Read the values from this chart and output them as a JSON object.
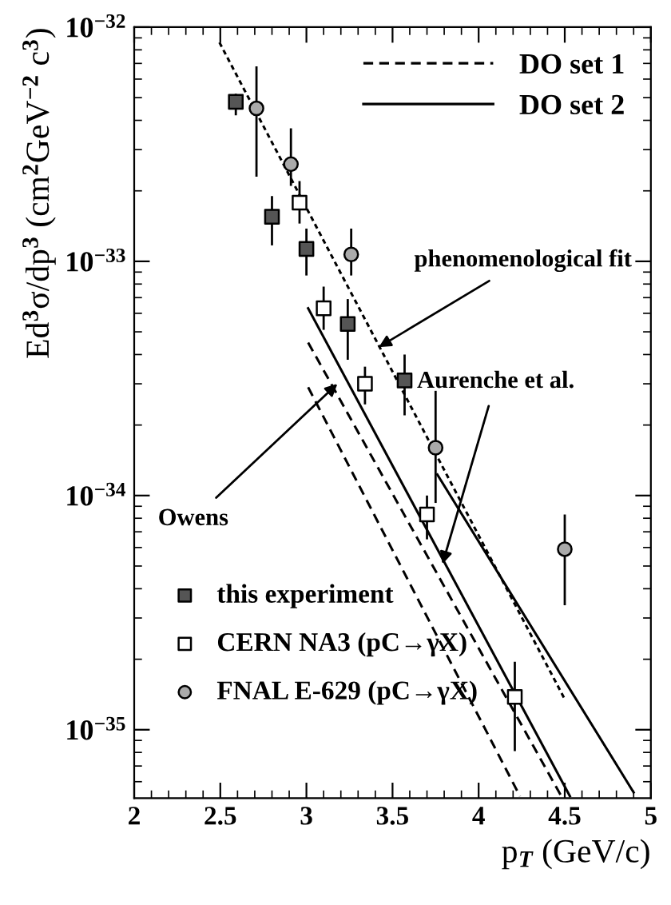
{
  "chart_data": {
    "type": "scatter",
    "xlabel": "p$_{T}$ (GeV/c)",
    "ylabel": "Ed$^{3}$σ/dp$^{3}$ (cm$^{2}$GeV$^{−2}$ c$^{3}$)",
    "xlim": [
      2,
      5
    ],
    "xticks": [
      2,
      2.5,
      3,
      3.5,
      4,
      4.5,
      5
    ],
    "log": "y",
    "ylim": [
      5.1e-36,
      1e-32
    ],
    "yticks": [
      {
        "value": 1e-35,
        "label": "10$^{−35}$"
      },
      {
        "value": 1e-34,
        "label": "10$^{−34}$"
      },
      {
        "value": 1e-33,
        "label": "10$^{−33}$"
      },
      {
        "value": 1e-32,
        "label": "10$^{−32}$"
      }
    ],
    "grid": false,
    "legend": "top right",
    "series": [
      {
        "name": "this experiment",
        "marker": "square",
        "color": "#555555",
        "x": [
          2.59,
          2.8,
          3.0,
          3.24,
          3.57
        ],
        "values": [
          4.8e-33,
          1.55e-33,
          1.13e-33,
          5.4e-34,
          3.1e-34
        ],
        "errors": [
          [
            4.2e-33,
            5.2e-33
          ],
          [
            1.17e-33,
            1.9e-33
          ],
          [
            8.7e-34,
            1.38e-33
          ],
          [
            3.8e-34,
            6.9e-34
          ],
          [
            2.2e-34,
            4e-34
          ]
        ]
      },
      {
        "name": "CERN NA3 (pC→γX)",
        "marker": "square",
        "color": "#ffffff",
        "x": [
          2.96,
          3.1,
          3.34,
          3.7,
          4.21
        ],
        "values": [
          1.78e-33,
          6.3e-34,
          3e-34,
          8.3e-35,
          1.38e-35
        ],
        "errors": [
          [
            1.45e-33,
            2.2e-33
          ],
          [
            5.1e-34,
            7.8e-34
          ],
          [
            2.45e-34,
            3.55e-34
          ],
          [
            6.5e-35,
            1e-34
          ],
          [
            8.1e-36,
            1.95e-35
          ]
        ]
      },
      {
        "name": "FNAL E-629 (pC→γX)",
        "marker": "circle",
        "color": "#aaaaaa",
        "x": [
          2.71,
          2.91,
          3.26,
          3.75,
          4.5
        ],
        "values": [
          4.5e-33,
          2.6e-33,
          1.07e-33,
          1.6e-34,
          5.9e-35
        ],
        "errors": [
          [
            2.3e-33,
            6.8e-33
          ],
          [
            2.1e-33,
            3.7e-33
          ],
          [
            8.7e-34,
            1.38e-33
          ],
          [
            9.3e-35,
            2.8e-34
          ],
          [
            3.4e-35,
            8.3e-35
          ]
        ]
      },
      {
        "type": "line",
        "line_style": "dotted",
        "color": "#000000",
        "x": [
          2.495,
          4.5
        ],
        "values": [
          8.6e-33,
          1.35e-35
        ]
      },
      {
        "name": "DO set 1",
        "type": "line",
        "line_style": "dashed",
        "color": "#000000",
        "x": [
          3.01,
          4.48
        ],
        "values": [
          4.5e-34,
          5.2e-36
        ]
      },
      {
        "name": "DO set 2",
        "type": "line",
        "line_style": "solid",
        "color": "#000000",
        "x": [
          3.76,
          4.9
        ],
        "values": [
          1.23e-34,
          5.4e-36
        ]
      },
      {
        "type": "line",
        "line_style": "solid",
        "color": "#000000",
        "x": [
          3.01,
          4.53
        ],
        "values": [
          6.3e-34,
          5.2e-36
        ]
      },
      {
        "type": "line",
        "line_style": "dashed",
        "color": "#000000",
        "x": [
          3.01,
          4.24
        ],
        "values": [
          2.9e-34,
          5.2e-36
        ]
      }
    ],
    "annotations": [
      {
        "text": "phenomenological fit",
        "x": 3.42,
        "y": 4.3e-34
      },
      {
        "text": "Aurenche et al.",
        "x": 3.79,
        "y": 5.1e-35
      },
      {
        "text": "Owens",
        "x": 3.18,
        "y": 3e-34
      }
    ]
  }
}
